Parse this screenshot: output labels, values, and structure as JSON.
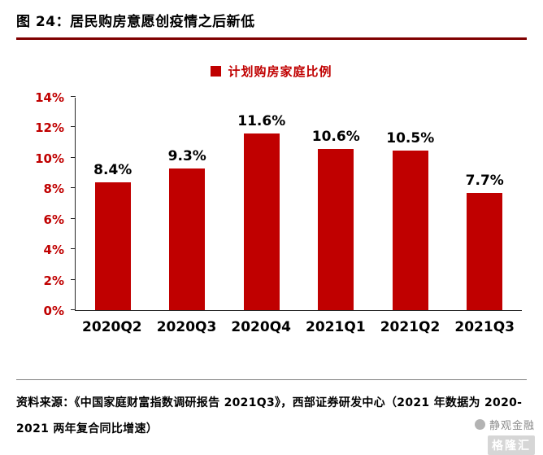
{
  "title": "图 24：居民购房意愿创疫情之后新低",
  "chart_data": {
    "type": "bar",
    "title": "图 24：居民购房意愿创疫情之后新低",
    "legend": "计划购房家庭比例",
    "legend_position": "top-center",
    "categories": [
      "2020Q2",
      "2020Q3",
      "2020Q4",
      "2021Q1",
      "2021Q2",
      "2021Q3"
    ],
    "values": [
      8.4,
      9.3,
      11.6,
      10.6,
      10.5,
      7.7
    ],
    "value_labels": [
      "8.4%",
      "9.3%",
      "11.6%",
      "10.6%",
      "10.5%",
      "7.7%"
    ],
    "xlabel": "",
    "ylabel": "",
    "ylim": [
      0,
      14
    ],
    "y_ticks": [
      "0%",
      "2%",
      "4%",
      "6%",
      "8%",
      "10%",
      "12%",
      "14%"
    ],
    "grid": false,
    "bar_color": "#c00000",
    "axis_label_color": "#c00000"
  },
  "footer": {
    "source": "资料来源：《中国家庭财富指数调研报告 2021Q3》，西部证券研发中心（2021 年数据为 2020-2021 两年复合同比增速）"
  },
  "watermark": {
    "name": "静观金融",
    "logo": "格隆汇"
  }
}
